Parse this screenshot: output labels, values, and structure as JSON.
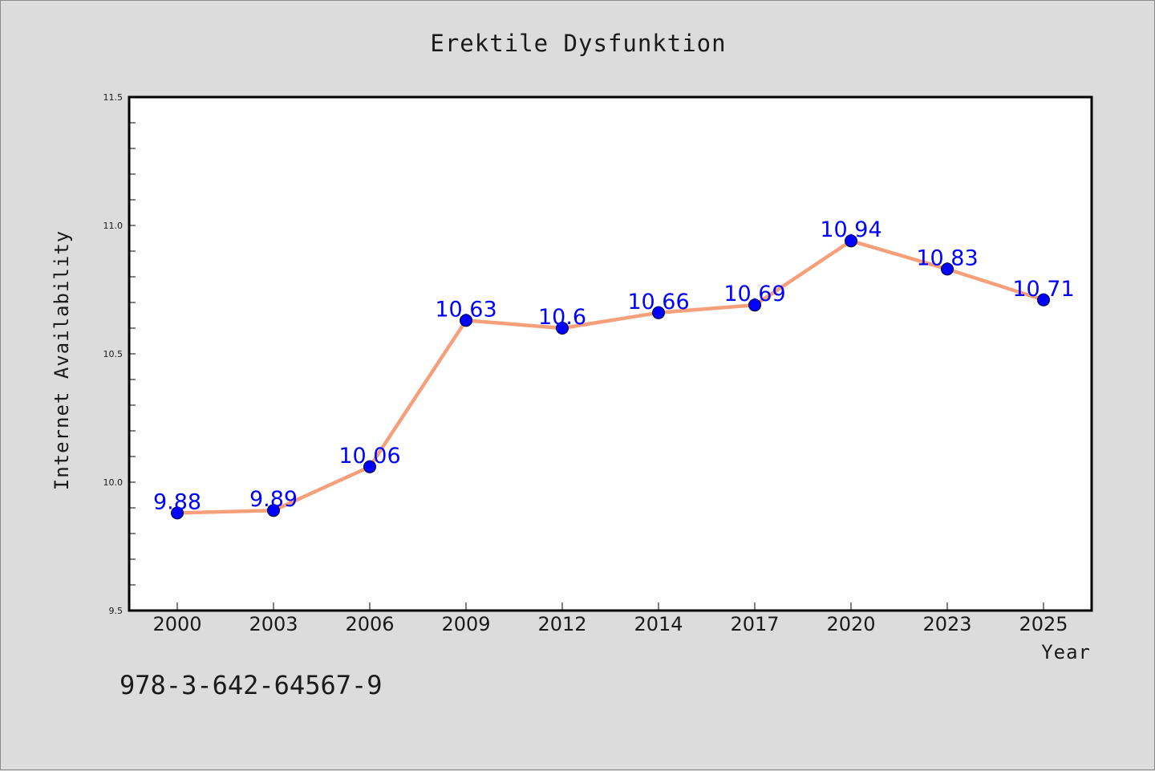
{
  "chart_data": {
    "type": "line",
    "title": "Erektile Dysfunktion",
    "xlabel": "Year",
    "ylabel": "Internet Availability",
    "categories": [
      "2000",
      "2003",
      "2006",
      "2009",
      "2012",
      "2014",
      "2017",
      "2020",
      "2023",
      "2025"
    ],
    "series": [
      {
        "values": [
          9.88,
          9.89,
          10.06,
          10.63,
          10.6,
          10.66,
          10.69,
          10.94,
          10.83,
          10.71
        ],
        "labels": [
          "9.88",
          "9.89",
          "10.06",
          "10.63",
          "10.6",
          "10.66",
          "10.69",
          "10.94",
          "10.83",
          "10.71"
        ],
        "line_color": "#f5a07a",
        "marker_color": "#0000ff"
      }
    ],
    "ylim": [
      9.5,
      11.5
    ],
    "yticks": [
      "9.5",
      "10.0",
      "10.5",
      "11.0",
      "11.5"
    ],
    "grid": false,
    "label_color": "#0000ff"
  },
  "footer": {
    "isbn": "978-3-642-64567-9"
  }
}
